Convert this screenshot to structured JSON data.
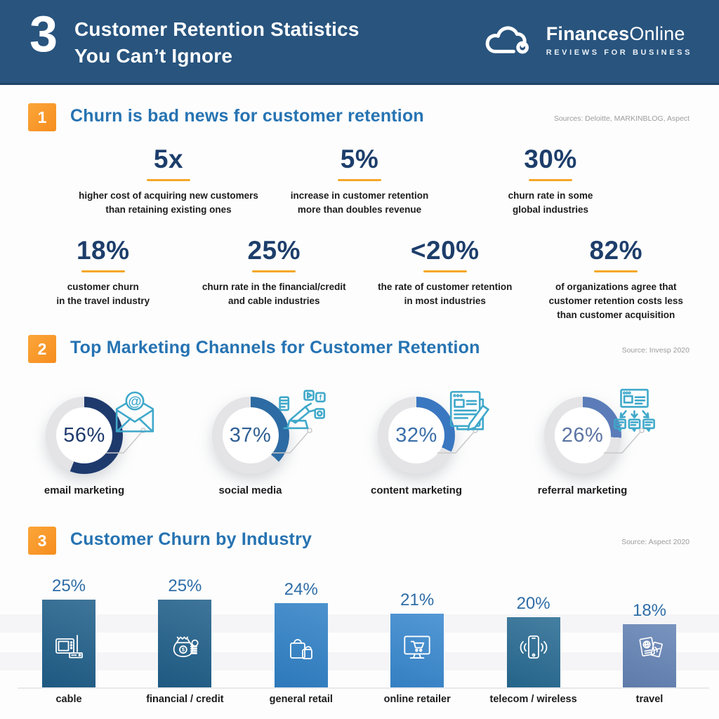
{
  "header": {
    "big_number": "3",
    "title_line1": "Customer Retention Statistics",
    "title_line2": "You Can’t Ignore",
    "brand": {
      "bold": "Finances",
      "regular": "Online",
      "tagline": "REVIEWS FOR BUSINESS"
    }
  },
  "sections": {
    "s1": {
      "badge": "1",
      "heading": "Churn is bad news for customer retention",
      "source": "Sources: Deloitte, MARKINBLOG, Aspect"
    },
    "s2": {
      "badge": "2",
      "heading": "Top Marketing Channels for Customer Retention",
      "source": "Source: Invesp 2020"
    },
    "s3": {
      "badge": "3",
      "heading": "Customer Churn by Industry",
      "source": "Source: Aspect 2020"
    }
  },
  "stats_rows": [
    [
      {
        "value": "5x",
        "desc_lines": [
          "higher cost of acquiring new customers",
          "than retaining existing ones"
        ]
      },
      {
        "value": "5%",
        "desc_lines": [
          "increase in customer retention",
          "more than doubles revenue"
        ]
      },
      {
        "value": "30%",
        "desc_lines": [
          "churn rate in some",
          "global industries"
        ]
      }
    ],
    [
      {
        "value": "18%",
        "desc_lines": [
          "customer churn",
          "in the travel industry"
        ]
      },
      {
        "value": "25%",
        "desc_lines": [
          "churn rate in the financial/credit",
          "and cable industries"
        ]
      },
      {
        "value": "<20%",
        "desc_lines": [
          "the rate of customer retention",
          "in most industries"
        ]
      },
      {
        "value": "82%",
        "desc_lines": [
          "of organizations agree that",
          "customer retention costs less",
          "than customer acquisition"
        ]
      }
    ]
  ],
  "chart_data": [
    {
      "type": "pie",
      "subtype": "donut-set",
      "title": "Top Marketing Channels for Customer Retention",
      "ring_color": "#e4e4e7",
      "icon_color": "#3fa8ca",
      "items": [
        {
          "label": "email marketing",
          "value": 56,
          "arc_color": "#1e3a6d",
          "text_color": "#1e3a6d",
          "icon": "email-envelope-icon"
        },
        {
          "label": "social media",
          "value": 37,
          "arc_color": "#2c6ba3",
          "text_color": "#2f5f93",
          "icon": "social-media-icon"
        },
        {
          "label": "content marketing",
          "value": 32,
          "arc_color": "#3a77c1",
          "text_color": "#3a6ea8",
          "icon": "content-writing-icon"
        },
        {
          "label": "referral marketing",
          "value": 26,
          "arc_color": "#5b7cb8",
          "text_color": "#5b74a3",
          "icon": "referral-diagram-icon"
        }
      ]
    },
    {
      "type": "bar",
      "title": "Customer Churn by Industry",
      "categories": [
        "cable",
        "financial / credit",
        "general retail",
        "online retailer",
        "telecom / wireless",
        "travel"
      ],
      "values": [
        25,
        25,
        24,
        21,
        20,
        18
      ],
      "value_suffix": "%",
      "ylim": [
        0,
        25
      ],
      "grid": "horizontal-bands",
      "bar_colors": [
        "#1f5e89",
        "#1f5e89",
        "#2f80c6",
        "#3787ce",
        "#276a92",
        "#6382b4"
      ],
      "icons": [
        "tv-router-icon",
        "money-bag-icon",
        "shopping-bags-icon",
        "online-store-icon",
        "smartphone-icon",
        "travel-documents-icon"
      ],
      "value_label_color": "#2e6da7"
    }
  ],
  "colors": {
    "header_bg": "#28547e",
    "accent_orange": "#f7941d",
    "heading_blue": "#2673b2",
    "stat_navy": "#1d3e6b",
    "source_gray": "#9c9c9c"
  }
}
